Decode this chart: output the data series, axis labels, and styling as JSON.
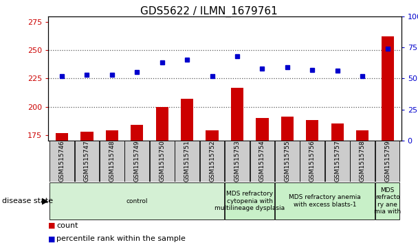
{
  "title": "GDS5622 / ILMN_1679761",
  "samples": [
    "GSM1515746",
    "GSM1515747",
    "GSM1515748",
    "GSM1515749",
    "GSM1515750",
    "GSM1515751",
    "GSM1515752",
    "GSM1515753",
    "GSM1515754",
    "GSM1515755",
    "GSM1515756",
    "GSM1515757",
    "GSM1515758",
    "GSM1515759"
  ],
  "counts": [
    177,
    178,
    179,
    184,
    200,
    207,
    179,
    217,
    190,
    191,
    188,
    185,
    179,
    262
  ],
  "percentiles": [
    52,
    53,
    53,
    55,
    63,
    65,
    52,
    68,
    58,
    59,
    57,
    56,
    52,
    74
  ],
  "ylim_left": [
    170,
    280
  ],
  "ylim_right": [
    0,
    100
  ],
  "yticks_left": [
    175,
    200,
    225,
    250,
    275
  ],
  "yticks_right": [
    0,
    25,
    50,
    75,
    100
  ],
  "bar_color": "#cc0000",
  "dot_color": "#0000cc",
  "bar_width": 0.5,
  "disease_groups": [
    {
      "label": "control",
      "start": 0,
      "end": 7,
      "color": "#d4f0d4"
    },
    {
      "label": "MDS refractory\ncytopenia with\nmultilineage dysplasia",
      "start": 7,
      "end": 9,
      "color": "#c8f0c8"
    },
    {
      "label": "MDS refractory anemia\nwith excess blasts-1",
      "start": 9,
      "end": 13,
      "color": "#c8f0c8"
    },
    {
      "label": "MDS\nrefracto\nry ane\nmia with",
      "start": 13,
      "end": 14,
      "color": "#c8f0c8"
    }
  ],
  "legend_count_label": "count",
  "legend_pct_label": "percentile rank within the sample",
  "disease_state_label": "disease state",
  "hline_y": [
    200,
    225,
    250
  ],
  "bg_color": "#ffffff",
  "tick_label_color_left": "#cc0000",
  "tick_label_color_right": "#0000cc",
  "sample_box_color": "#cccccc",
  "sample_box_edge": "#000000"
}
